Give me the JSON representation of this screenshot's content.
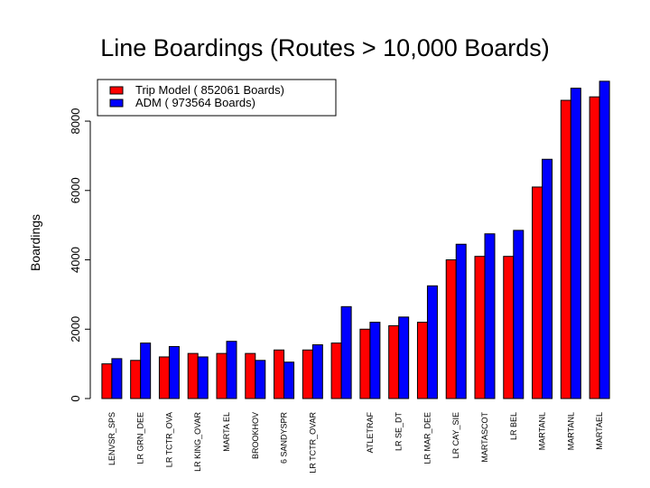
{
  "chart_data": {
    "type": "bar",
    "title": "Line Boardings (Routes > 10,000 Boards)",
    "ylabel": "Boardings",
    "xlabel": "",
    "ylim": [
      0,
      9200
    ],
    "yticks": [
      0,
      2000,
      4000,
      6000,
      8000
    ],
    "grid": false,
    "legend_position": "top-left",
    "categories": [
      "LENVSR_SPS",
      "LR GRN_DEE",
      "LR TCTR_OVA",
      "LR KING_OVAR",
      "MARTA EL",
      "BROOKHOV",
      "6 SANDYSPR",
      "LR TCTR_OVAR",
      "",
      "ATLETRAF",
      "LR SE_DT",
      "LR MAR_DEE",
      "LR CAY_SIE",
      "MARTASCOT",
      "LR BEL",
      "MARTANL",
      "MARTANL",
      "MARTAEL"
    ],
    "series": [
      {
        "name": "Trip Model ( 852061 Boards)",
        "color": "#ff0000",
        "values": [
          1000,
          1100,
          1200,
          1300,
          1300,
          1300,
          1400,
          1400,
          1600,
          2000,
          2100,
          2200,
          4000,
          4100,
          4100,
          6100,
          8600,
          8700
        ]
      },
      {
        "name": "ADM ( 973564 Boards)",
        "color": "#0000ff",
        "values": [
          1150,
          1600,
          1500,
          1200,
          1650,
          1100,
          1050,
          1550,
          2650,
          2200,
          2350,
          3250,
          4450,
          4750,
          4850,
          6900,
          8950,
          9150
        ]
      }
    ]
  }
}
